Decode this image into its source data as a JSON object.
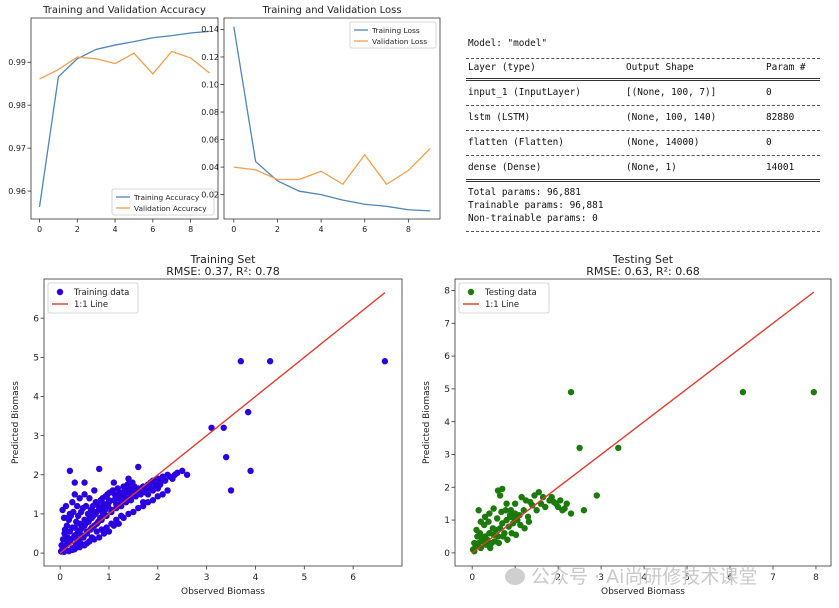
{
  "chart_data": [
    {
      "type": "line",
      "title": "Training and Validation Accuracy",
      "x": [
        0,
        1,
        2,
        3,
        4,
        5,
        6,
        7,
        8,
        9
      ],
      "xticks": [
        0,
        2,
        4,
        6,
        8
      ],
      "yticks": [
        0.96,
        0.97,
        0.98,
        0.99
      ],
      "xlim": [
        -0.45,
        9.45
      ],
      "ylim": [
        0.9535,
        1.0003
      ],
      "legend_position": "lower-right",
      "series": [
        {
          "name": "Training Accuracy",
          "color": "#4f86b6",
          "values": [
            0.9563,
            0.9866,
            0.9908,
            0.993,
            0.994,
            0.9948,
            0.9957,
            0.9962,
            0.9968,
            0.9972
          ]
        },
        {
          "name": "Validation Accuracy",
          "color": "#f0a04e",
          "values": [
            0.9861,
            0.9883,
            0.9912,
            0.9908,
            0.9897,
            0.9921,
            0.9873,
            0.9925,
            0.991,
            0.9875
          ]
        }
      ]
    },
    {
      "type": "line",
      "title": "Training and Validation Loss",
      "x": [
        0,
        1,
        2,
        3,
        4,
        5,
        6,
        7,
        8,
        9
      ],
      "xticks": [
        0,
        2,
        4,
        6,
        8
      ],
      "yticks": [
        0.02,
        0.04,
        0.06,
        0.08,
        0.1,
        0.12,
        0.14
      ],
      "xlim": [
        -0.45,
        9.45
      ],
      "ylim": [
        0.0023,
        0.1483
      ],
      "legend_position": "upper-right",
      "series": [
        {
          "name": "Training Loss",
          "color": "#4f86b6",
          "values": [
            0.142,
            0.044,
            0.03,
            0.0225,
            0.02,
            0.016,
            0.013,
            0.0115,
            0.009,
            0.0082
          ]
        },
        {
          "name": "Validation Loss",
          "color": "#f0a04e",
          "values": [
            0.04,
            0.038,
            0.031,
            0.031,
            0.037,
            0.0275,
            0.049,
            0.0275,
            0.0375,
            0.0535
          ]
        }
      ]
    },
    {
      "type": "scatter",
      "title": "Training Set",
      "subtitle": "RMSE: 0.37, R²: 0.78",
      "xlabel": "Observed Biomass",
      "ylabel": "Predicted Biomass",
      "xticks": [
        0,
        1,
        2,
        3,
        4,
        5,
        6
      ],
      "yticks": [
        0,
        1,
        2,
        3,
        4,
        5,
        6
      ],
      "xlim": [
        -0.33,
        7.0
      ],
      "ylim": [
        -0.33,
        7.0
      ],
      "legend_position": "upper-left",
      "point_color": "#2a00e0",
      "line_color": "#e23a2e",
      "points_name": "Training data",
      "line_name": "1:1 Line",
      "line": [
        [
          0,
          0
        ],
        [
          6.65,
          6.65
        ]
      ],
      "points": [
        [
          0.02,
          0.04
        ],
        [
          0.05,
          0.1
        ],
        [
          0.08,
          0.03
        ],
        [
          0.1,
          0.15
        ],
        [
          0.12,
          0.2
        ],
        [
          0.15,
          0.25
        ],
        [
          0.18,
          0.05
        ],
        [
          0.2,
          0.3
        ],
        [
          0.22,
          0.35
        ],
        [
          0.25,
          0.12
        ],
        [
          0.28,
          0.4
        ],
        [
          0.3,
          0.45
        ],
        [
          0.32,
          0.2
        ],
        [
          0.35,
          0.5
        ],
        [
          0.38,
          0.55
        ],
        [
          0.4,
          0.3
        ],
        [
          0.42,
          0.6
        ],
        [
          0.45,
          0.65
        ],
        [
          0.48,
          0.4
        ],
        [
          0.5,
          0.7
        ],
        [
          0.52,
          0.75
        ],
        [
          0.55,
          0.5
        ],
        [
          0.58,
          0.8
        ],
        [
          0.6,
          0.85
        ],
        [
          0.62,
          0.6
        ],
        [
          0.65,
          0.9
        ],
        [
          0.68,
          0.95
        ],
        [
          0.7,
          0.7
        ],
        [
          0.72,
          1.0
        ],
        [
          0.75,
          1.05
        ],
        [
          0.78,
          0.8
        ],
        [
          0.8,
          1.1
        ],
        [
          0.82,
          0.9
        ],
        [
          0.85,
          1.15
        ],
        [
          0.88,
          1.0
        ],
        [
          0.9,
          1.2
        ],
        [
          0.92,
          1.1
        ],
        [
          0.95,
          1.25
        ],
        [
          0.98,
          1.2
        ],
        [
          1.0,
          1.3
        ],
        [
          1.05,
          1.1
        ],
        [
          1.1,
          1.35
        ],
        [
          1.15,
          1.25
        ],
        [
          1.2,
          1.4
        ],
        [
          1.25,
          1.3
        ],
        [
          1.3,
          1.5
        ],
        [
          1.35,
          1.4
        ],
        [
          1.4,
          1.55
        ],
        [
          1.45,
          1.45
        ],
        [
          1.5,
          1.6
        ],
        [
          1.55,
          1.5
        ],
        [
          1.6,
          1.65
        ],
        [
          1.65,
          1.55
        ],
        [
          1.7,
          1.7
        ],
        [
          1.75,
          1.6
        ],
        [
          1.8,
          1.75
        ],
        [
          1.85,
          1.8
        ],
        [
          1.9,
          1.85
        ],
        [
          1.95,
          1.75
        ],
        [
          2.0,
          1.9
        ],
        [
          2.05,
          1.8
        ],
        [
          2.1,
          1.95
        ],
        [
          2.2,
          2.0
        ],
        [
          2.3,
          1.9
        ],
        [
          2.4,
          2.05
        ],
        [
          2.5,
          2.1
        ],
        [
          2.6,
          2.0
        ],
        [
          0.1,
          0.6
        ],
        [
          0.15,
          0.9
        ],
        [
          0.2,
          1.0
        ],
        [
          0.25,
          1.3
        ],
        [
          0.3,
          1.5
        ],
        [
          0.35,
          1.2
        ],
        [
          0.4,
          1.4
        ],
        [
          0.5,
          1.5
        ],
        [
          0.6,
          1.4
        ],
        [
          0.05,
          1.1
        ],
        [
          0.08,
          0.9
        ],
        [
          0.12,
          1.2
        ],
        [
          0.2,
          2.1
        ],
        [
          0.3,
          1.8
        ],
        [
          0.5,
          1.8
        ],
        [
          0.7,
          1.6
        ],
        [
          0.8,
          2.15
        ],
        [
          1.1,
          1.8
        ],
        [
          1.3,
          1.7
        ],
        [
          1.4,
          1.9
        ],
        [
          1.6,
          2.2
        ],
        [
          1.8,
          1.7
        ],
        [
          1.9,
          1.6
        ],
        [
          0.3,
          0.1
        ],
        [
          0.4,
          0.15
        ],
        [
          0.5,
          0.2
        ],
        [
          0.6,
          0.3
        ],
        [
          0.7,
          0.35
        ],
        [
          0.8,
          0.4
        ],
        [
          0.9,
          0.5
        ],
        [
          1.0,
          0.55
        ],
        [
          1.1,
          0.7
        ],
        [
          1.2,
          0.75
        ],
        [
          1.3,
          0.9
        ],
        [
          1.4,
          1.0
        ],
        [
          1.5,
          1.05
        ],
        [
          1.6,
          1.15
        ],
        [
          1.7,
          1.2
        ],
        [
          1.8,
          1.3
        ],
        [
          1.9,
          1.35
        ],
        [
          2.0,
          1.45
        ],
        [
          2.1,
          1.5
        ],
        [
          0.25,
          0.08
        ],
        [
          0.35,
          0.18
        ],
        [
          0.45,
          0.22
        ],
        [
          0.55,
          0.25
        ],
        [
          0.65,
          0.4
        ],
        [
          0.75,
          0.55
        ],
        [
          0.85,
          0.6
        ],
        [
          0.95,
          0.65
        ],
        [
          1.05,
          0.75
        ],
        [
          1.15,
          0.85
        ],
        [
          1.25,
          0.95
        ],
        [
          0.03,
          0.2
        ],
        [
          0.06,
          0.35
        ],
        [
          0.09,
          0.5
        ],
        [
          0.14,
          0.7
        ],
        [
          0.18,
          0.85
        ],
        [
          0.22,
          0.95
        ],
        [
          0.27,
          1.05
        ],
        [
          0.33,
          0.8
        ],
        [
          0.37,
          0.95
        ],
        [
          0.43,
          1.05
        ],
        [
          0.47,
          1.15
        ],
        [
          0.53,
          1.2
        ],
        [
          0.57,
          1.0
        ],
        [
          0.63,
          1.1
        ],
        [
          0.67,
          1.2
        ],
        [
          0.73,
          1.3
        ],
        [
          0.77,
          1.25
        ],
        [
          0.83,
          1.35
        ],
        [
          0.87,
          1.4
        ],
        [
          0.93,
          1.45
        ],
        [
          0.97,
          1.5
        ],
        [
          1.02,
          1.55
        ],
        [
          1.08,
          1.6
        ],
        [
          1.12,
          1.5
        ],
        [
          1.18,
          1.65
        ],
        [
          1.22,
          1.55
        ],
        [
          1.28,
          1.45
        ],
        [
          1.32,
          1.6
        ],
        [
          1.38,
          1.75
        ],
        [
          1.42,
          1.65
        ],
        [
          1.48,
          1.8
        ],
        [
          1.52,
          1.7
        ],
        [
          2.2,
          1.6
        ],
        [
          1.7,
          1.3
        ],
        [
          1.8,
          1.5
        ],
        [
          2.0,
          1.65
        ],
        [
          0.3,
          0.65
        ],
        [
          0.4,
          0.75
        ],
        [
          0.5,
          0.85
        ],
        [
          0.6,
          0.95
        ],
        [
          0.7,
          1.05
        ],
        [
          0.8,
          1.15
        ],
        [
          0.9,
          1.25
        ],
        [
          1.0,
          1.35
        ],
        [
          0.15,
          0.4
        ],
        [
          0.2,
          0.55
        ],
        [
          0.25,
          0.65
        ],
        [
          0.35,
          0.35
        ],
        [
          0.45,
          0.45
        ],
        [
          0.55,
          0.55
        ],
        [
          0.65,
          0.65
        ],
        [
          0.75,
          0.75
        ],
        [
          0.85,
          0.85
        ],
        [
          0.95,
          0.95
        ],
        [
          1.05,
          1.05
        ],
        [
          1.15,
          1.15
        ],
        [
          1.25,
          1.2
        ],
        [
          1.35,
          1.3
        ],
        [
          1.45,
          1.35
        ],
        [
          1.55,
          1.45
        ],
        [
          1.65,
          1.5
        ],
        [
          1.75,
          1.55
        ],
        [
          1.85,
          1.65
        ],
        [
          1.95,
          1.7
        ],
        [
          2.05,
          1.75
        ],
        [
          2.15,
          1.85
        ],
        [
          2.25,
          1.95
        ],
        [
          2.35,
          2.0
        ],
        [
          3.1,
          3.2
        ],
        [
          3.35,
          3.2
        ],
        [
          3.4,
          2.45
        ],
        [
          3.5,
          1.6
        ],
        [
          3.7,
          4.9
        ],
        [
          3.85,
          3.6
        ],
        [
          3.9,
          2.1
        ],
        [
          4.3,
          4.9
        ],
        [
          6.65,
          4.9
        ]
      ]
    },
    {
      "type": "scatter",
      "title": "Testing Set",
      "subtitle": "RMSE: 0.63, R²: 0.68",
      "xlabel": "Observed Biomass",
      "ylabel": "Predicted Biomass",
      "xticks": [
        0,
        1,
        2,
        3,
        4,
        5,
        6,
        7,
        8
      ],
      "yticks": [
        0,
        1,
        2,
        3,
        4,
        5,
        6,
        7,
        8
      ],
      "xlim": [
        -0.4,
        8.35
      ],
      "ylim": [
        -0.4,
        8.35
      ],
      "legend_position": "upper-left",
      "point_color": "#1a7a0a",
      "line_color": "#e23a2e",
      "points_name": "Testing data",
      "line_name": "1:1 Line",
      "line": [
        [
          0,
          0
        ],
        [
          7.95,
          7.95
        ]
      ],
      "points": [
        [
          0.02,
          0.1
        ],
        [
          0.05,
          0.05
        ],
        [
          0.1,
          0.2
        ],
        [
          0.15,
          0.3
        ],
        [
          0.2,
          0.15
        ],
        [
          0.25,
          0.35
        ],
        [
          0.3,
          0.5
        ],
        [
          0.35,
          0.4
        ],
        [
          0.4,
          0.6
        ],
        [
          0.45,
          0.3
        ],
        [
          0.5,
          0.55
        ],
        [
          0.55,
          0.7
        ],
        [
          0.6,
          0.5
        ],
        [
          0.65,
          0.75
        ],
        [
          0.7,
          0.9
        ],
        [
          0.75,
          0.6
        ],
        [
          0.8,
          1.0
        ],
        [
          0.85,
          0.8
        ],
        [
          0.9,
          1.1
        ],
        [
          0.95,
          0.9
        ],
        [
          1.0,
          1.2
        ],
        [
          1.05,
          1.0
        ],
        [
          1.1,
          1.15
        ],
        [
          1.2,
          1.3
        ],
        [
          1.3,
          1.1
        ],
        [
          1.4,
          1.45
        ],
        [
          1.5,
          1.3
        ],
        [
          1.6,
          1.5
        ],
        [
          1.7,
          1.4
        ],
        [
          1.8,
          1.6
        ],
        [
          1.9,
          1.55
        ],
        [
          2.0,
          1.4
        ],
        [
          2.1,
          1.3
        ],
        [
          2.2,
          1.5
        ],
        [
          0.1,
          0.7
        ],
        [
          0.2,
          0.95
        ],
        [
          0.3,
          1.1
        ],
        [
          0.15,
          1.3
        ],
        [
          0.4,
          1.2
        ],
        [
          0.5,
          1.35
        ],
        [
          0.6,
          1.9
        ],
        [
          0.65,
          1.75
        ],
        [
          0.7,
          1.95
        ],
        [
          0.8,
          1.5
        ],
        [
          0.9,
          1.3
        ],
        [
          1.0,
          1.5
        ],
        [
          1.15,
          1.7
        ],
        [
          1.25,
          1.6
        ],
        [
          1.35,
          1.55
        ],
        [
          1.45,
          1.75
        ],
        [
          1.55,
          1.85
        ],
        [
          1.65,
          1.7
        ],
        [
          1.85,
          1.7
        ],
        [
          1.95,
          1.5
        ],
        [
          2.05,
          1.6
        ],
        [
          2.15,
          1.35
        ],
        [
          2.3,
          1.2
        ],
        [
          0.05,
          0.3
        ],
        [
          0.12,
          0.5
        ],
        [
          0.22,
          0.45
        ],
        [
          0.32,
          0.25
        ],
        [
          0.42,
          0.15
        ],
        [
          0.52,
          0.35
        ],
        [
          0.62,
          0.3
        ],
        [
          0.72,
          0.5
        ],
        [
          0.82,
          0.4
        ],
        [
          0.92,
          0.6
        ],
        [
          1.02,
          0.55
        ],
        [
          1.12,
          0.85
        ],
        [
          1.22,
          0.75
        ],
        [
          1.32,
          0.95
        ],
        [
          0.08,
          0.2
        ],
        [
          0.18,
          0.6
        ],
        [
          0.28,
          0.85
        ],
        [
          0.38,
          0.95
        ],
        [
          0.48,
          0.75
        ],
        [
          0.58,
          1.05
        ],
        [
          0.68,
          1.25
        ],
        [
          0.78,
          1.3
        ],
        [
          0.88,
          1.15
        ],
        [
          0.98,
          1.05
        ],
        [
          2.3,
          4.9
        ],
        [
          2.5,
          3.2
        ],
        [
          2.6,
          1.3
        ],
        [
          2.9,
          1.75
        ],
        [
          3.4,
          3.2
        ],
        [
          6.3,
          4.9
        ],
        [
          7.95,
          4.9
        ]
      ]
    }
  ],
  "model_summary": {
    "title": "Model: \"model\"",
    "headers": [
      "Layer (type)",
      "Output Shape",
      "Param #"
    ],
    "rows": [
      [
        "input_1 (InputLayer)",
        "[(None, 100, 7)]",
        "0"
      ],
      [
        "lstm (LSTM)",
        "(None, 100, 140)",
        "82880"
      ],
      [
        "flatten (Flatten)",
        "(None, 14000)",
        "0"
      ],
      [
        "dense (Dense)",
        "(None, 1)",
        "14001"
      ]
    ],
    "total": "Total params: 96,881",
    "trainable": "Trainable params: 96,881",
    "non_trainable": "Non-trainable params: 0"
  },
  "watermark": "公众号 · Ai尚研修技术课堂"
}
